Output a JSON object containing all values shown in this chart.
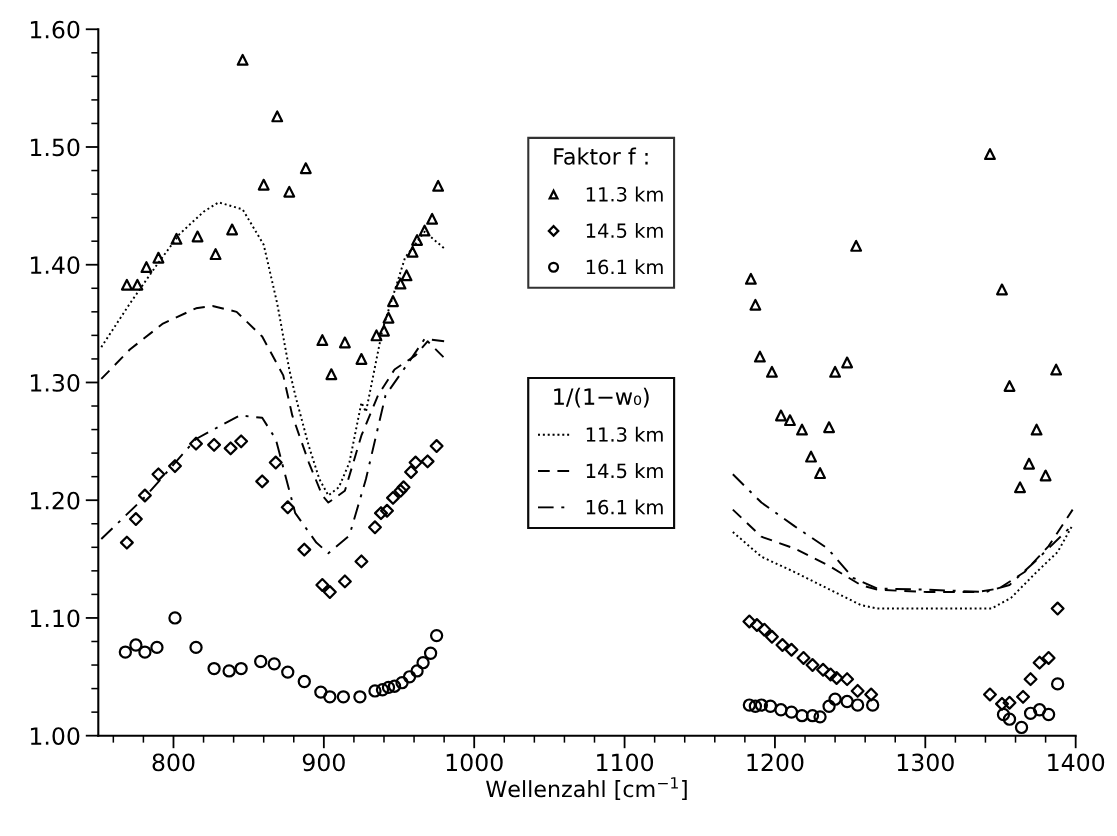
{
  "chart_data": {
    "type": "scatter",
    "xlabel": "Wellenzahl [cm$^{−1}$]",
    "xlim": [
      750,
      1400
    ],
    "xticks": [
      800,
      900,
      1000,
      1100,
      1200,
      1300,
      1400
    ],
    "ylim": [
      1.0,
      1.6
    ],
    "yticks": [
      {
        "value": 1.0,
        "label": "1.00"
      },
      {
        "value": 1.1,
        "label": "1.10"
      },
      {
        "value": 1.2,
        "label": "1.20"
      },
      {
        "value": 1.3,
        "label": "1.30"
      },
      {
        "value": 1.4,
        "label": "1.40"
      },
      {
        "value": 1.5,
        "label": "1.50"
      },
      {
        "value": 1.6,
        "label": "1.60"
      }
    ],
    "grid": false,
    "legend": "center",
    "legend_title": [
      "Faktor f :",
      "1/(1−w₀)"
    ],
    "series": [
      {
        "name": "11.3 km",
        "marker": "triangle",
        "color": "#000000",
        "x": [
          769,
          776,
          782,
          790,
          802,
          816,
          828,
          839,
          846,
          860,
          869,
          877,
          888,
          899,
          905,
          914,
          925,
          935,
          940,
          943,
          946,
          951,
          955,
          959,
          962,
          967,
          972,
          976,
          1184,
          1187,
          1190,
          1198,
          1204,
          1210,
          1218,
          1224,
          1230,
          1236,
          1240,
          1248,
          1254,
          1343,
          1351,
          1356,
          1363,
          1369,
          1374,
          1380,
          1387
        ],
        "values": [
          1.383,
          1.383,
          1.398,
          1.406,
          1.422,
          1.424,
          1.409,
          1.43,
          1.574,
          1.468,
          1.526,
          1.462,
          1.482,
          1.336,
          1.307,
          1.334,
          1.32,
          1.34,
          1.344,
          1.355,
          1.369,
          1.384,
          1.391,
          1.411,
          1.421,
          1.429,
          1.439,
          1.467,
          1.388,
          1.366,
          1.322,
          1.309,
          1.272,
          1.268,
          1.26,
          1.237,
          1.223,
          1.262,
          1.309,
          1.317,
          1.416,
          1.494,
          1.379,
          1.297,
          1.211,
          1.231,
          1.26,
          1.221,
          1.311
        ]
      },
      {
        "name": "14.5 km",
        "marker": "diamond",
        "color": "#000000",
        "x": [
          769,
          775,
          781,
          790,
          801,
          815,
          827,
          838,
          845,
          859,
          868,
          876,
          887,
          899,
          904,
          914,
          925,
          934,
          938,
          942,
          946,
          951,
          953,
          958,
          961,
          965,
          969,
          975,
          1183,
          1188,
          1193,
          1198,
          1205,
          1211,
          1219,
          1225,
          1232,
          1237,
          1241,
          1248,
          1255,
          1264,
          1343,
          1351,
          1356,
          1365,
          1370,
          1376,
          1382,
          1388
        ],
        "values": [
          1.164,
          1.184,
          1.204,
          1.222,
          1.229,
          1.248,
          1.247,
          1.244,
          1.25,
          1.216,
          1.232,
          1.194,
          1.158,
          1.128,
          1.122,
          1.131,
          1.148,
          1.177,
          1.189,
          1.191,
          1.202,
          1.208,
          1.211,
          1.224,
          1.232,
          null,
          1.233,
          1.246,
          1.097,
          1.094,
          1.09,
          1.084,
          1.077,
          1.073,
          1.066,
          1.06,
          1.056,
          1.052,
          1.049,
          1.048,
          1.038,
          1.035,
          1.035,
          1.027,
          1.028,
          1.033,
          1.048,
          1.062,
          1.066,
          1.108
        ]
      },
      {
        "name": "16.1 km",
        "marker": "circle",
        "color": "#000000",
        "x": [
          768,
          775,
          781,
          789,
          801,
          815,
          827,
          837,
          845,
          858,
          867,
          876,
          887,
          898,
          904,
          913,
          924,
          934,
          939,
          943,
          947,
          952,
          957,
          962,
          966,
          971,
          975,
          1183,
          1187,
          1191,
          1197,
          1204,
          1211,
          1218,
          1225,
          1230,
          1236,
          1240,
          1248,
          1255,
          1265,
          1352,
          1356,
          1364,
          1370,
          1376,
          1382,
          1388
        ],
        "values": [
          1.071,
          1.077,
          1.071,
          1.075,
          1.1,
          1.075,
          1.057,
          1.055,
          1.057,
          1.063,
          1.061,
          1.054,
          1.046,
          1.037,
          1.033,
          1.033,
          1.033,
          1.038,
          1.039,
          1.041,
          1.042,
          1.045,
          1.05,
          1.055,
          1.062,
          1.07,
          1.085,
          1.026,
          1.025,
          1.026,
          1.025,
          1.022,
          1.02,
          1.017,
          1.017,
          1.016,
          1.025,
          1.031,
          1.029,
          1.026,
          1.026,
          1.018,
          1.014,
          1.007,
          1.019,
          1.022,
          1.018,
          1.044
        ]
      },
      {
        "name": "11.3 km",
        "type": "line",
        "line_style": "dotted",
        "color": "#000000",
        "x": [
          752,
          771,
          789,
          804,
          820,
          830,
          846,
          860,
          869,
          877,
          881,
          890,
          897,
          903,
          910,
          917,
          925,
          928,
          939,
          954,
          967,
          980,
          null,
          1172,
          1191,
          1213,
          1235,
          1257,
          1268,
          1301,
          1344,
          1357,
          1374,
          1388,
          1398
        ],
        "values": [
          1.33,
          1.367,
          1.4,
          1.426,
          1.445,
          1.453,
          1.447,
          1.417,
          1.367,
          1.311,
          1.289,
          1.246,
          1.218,
          1.204,
          1.211,
          1.232,
          1.283,
          1.275,
          1.345,
          1.406,
          1.428,
          1.414,
          null,
          1.173,
          1.152,
          1.139,
          1.125,
          1.111,
          1.108,
          1.108,
          1.108,
          1.117,
          1.139,
          1.156,
          1.179
        ]
      },
      {
        "name": "14.5 km",
        "type": "line",
        "line_style": "dashed",
        "color": "#000000",
        "x": [
          752,
          771,
          793,
          815,
          826,
          842,
          859,
          873,
          879,
          890,
          899,
          903,
          914,
          925,
          936,
          947,
          961,
          969,
          980,
          null,
          1172,
          1191,
          1213,
          1235,
          1257,
          1268,
          1301,
          1334,
          1349,
          1366,
          1382,
          1398
        ],
        "values": [
          1.303,
          1.328,
          1.35,
          1.363,
          1.365,
          1.36,
          1.339,
          1.306,
          1.272,
          1.232,
          1.204,
          1.198,
          1.208,
          1.255,
          1.289,
          1.311,
          1.323,
          1.335,
          1.321,
          null,
          1.192,
          1.169,
          1.159,
          1.145,
          1.128,
          1.124,
          1.122,
          1.122,
          1.125,
          1.139,
          1.161,
          1.192
        ]
      },
      {
        "name": "16.1 km",
        "type": "line",
        "line_style": "dashdot",
        "color": "#000000",
        "x": [
          752,
          782,
          815,
          844,
          859,
          868,
          881,
          895,
          903,
          917,
          928,
          941,
          958,
          967,
          980,
          null,
          1172,
          1191,
          1213,
          1235,
          1252,
          1268,
          1301,
          1340,
          1356,
          1373,
          1398
        ],
        "values": [
          1.167,
          1.204,
          1.252,
          1.272,
          1.27,
          1.252,
          1.189,
          1.164,
          1.155,
          1.17,
          1.218,
          1.289,
          1.32,
          1.337,
          1.335,
          null,
          1.222,
          1.198,
          1.178,
          1.159,
          1.134,
          1.125,
          1.124,
          1.122,
          1.128,
          1.148,
          1.179
        ]
      }
    ]
  }
}
